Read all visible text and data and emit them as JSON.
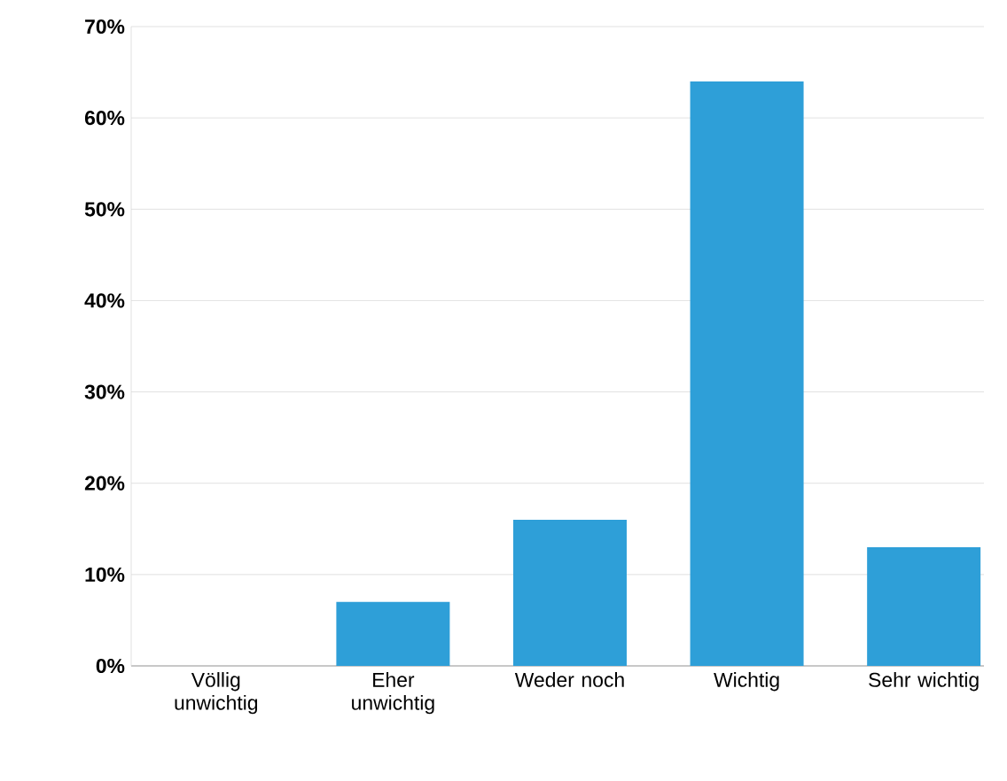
{
  "chart_data": {
    "type": "bar",
    "categories": [
      "Völlig unwichtig",
      "Eher unwichtig",
      "Weder noch",
      "Wichtig",
      "Sehr wichtig"
    ],
    "values": [
      0,
      7,
      16,
      64,
      13
    ],
    "color": "#2e9fd8",
    "ylim": [
      0,
      70
    ],
    "yticks": [
      {
        "value": 0,
        "label": "0%"
      },
      {
        "value": 10,
        "label": "10%"
      },
      {
        "value": 20,
        "label": "20%"
      },
      {
        "value": 30,
        "label": "30%"
      },
      {
        "value": 40,
        "label": "40%"
      },
      {
        "value": 50,
        "label": "50%"
      },
      {
        "value": 60,
        "label": "60%"
      },
      {
        "value": 70,
        "label": "70%"
      }
    ],
    "grid": "y"
  }
}
